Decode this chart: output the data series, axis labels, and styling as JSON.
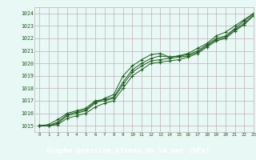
{
  "title": "Graphe pression niveau de la mer (hPa)",
  "background_color": "#e8f8f5",
  "plot_bg_color": "#e8f8f5",
  "grid_color": "#c0b0b8",
  "line_color": "#1a5c1a",
  "marker_color": "#1a5c1a",
  "label_bar_color": "#2d6a2d",
  "label_text_color": "#ffffff",
  "tick_color": "#1a5c1a",
  "xlim": [
    -0.5,
    23
  ],
  "ylim": [
    1014.5,
    1024.5
  ],
  "yticks": [
    1015,
    1016,
    1017,
    1018,
    1019,
    1020,
    1021,
    1022,
    1023,
    1024
  ],
  "xticks": [
    0,
    1,
    2,
    3,
    4,
    5,
    6,
    7,
    8,
    9,
    10,
    11,
    12,
    13,
    14,
    15,
    16,
    17,
    18,
    19,
    20,
    21,
    22,
    23
  ],
  "series": [
    [
      1015.0,
      1015.0,
      1015.2,
      1015.8,
      1016.0,
      1016.2,
      1016.8,
      1017.2,
      1017.5,
      1019.0,
      1019.8,
      1020.3,
      1020.7,
      1020.8,
      1020.5,
      1020.6,
      1020.8,
      1021.2,
      1021.6,
      1022.2,
      1022.5,
      1023.0,
      1023.5,
      1024.0
    ],
    [
      1015.0,
      1015.1,
      1015.5,
      1016.0,
      1016.2,
      1016.4,
      1017.0,
      1017.1,
      1017.3,
      1018.5,
      1019.5,
      1020.0,
      1020.4,
      1020.6,
      1020.5,
      1020.6,
      1020.7,
      1021.0,
      1021.5,
      1022.0,
      1022.2,
      1022.8,
      1023.4,
      1024.0
    ],
    [
      1015.0,
      1015.0,
      1015.3,
      1015.9,
      1016.1,
      1016.3,
      1016.9,
      1017.0,
      1017.2,
      1018.3,
      1019.3,
      1019.8,
      1020.2,
      1020.3,
      1020.4,
      1020.5,
      1020.6,
      1020.9,
      1021.4,
      1021.9,
      1022.1,
      1022.7,
      1023.2,
      1023.9
    ],
    [
      1015.0,
      1015.0,
      1015.1,
      1015.6,
      1015.8,
      1016.0,
      1016.5,
      1016.8,
      1017.0,
      1018.0,
      1019.0,
      1019.5,
      1020.0,
      1020.1,
      1020.2,
      1020.3,
      1020.5,
      1020.8,
      1021.3,
      1021.8,
      1022.0,
      1022.6,
      1023.1,
      1023.8
    ]
  ]
}
